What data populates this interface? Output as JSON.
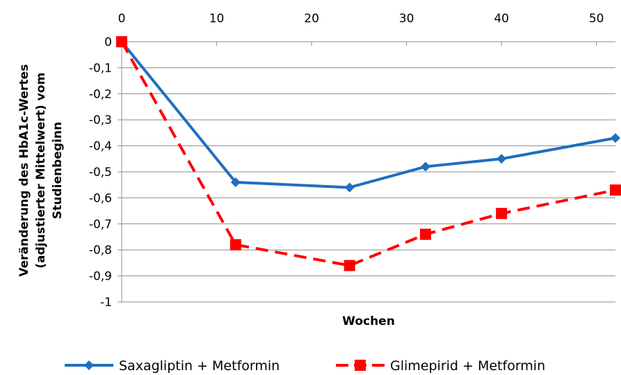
{
  "chart_data": {
    "type": "line",
    "xlabel": "Wochen",
    "ylabel_lines": [
      "Veränderung des HbA1c-Wertes",
      "(adjustierter Mittelwert) vom",
      "Studienbeginn"
    ],
    "x_ticks": [
      "0",
      "10",
      "20",
      "30",
      "40",
      "50"
    ],
    "y_ticks": [
      "0",
      "-0,1",
      "-0,2",
      "-0,3",
      "-0,4",
      "-0,5",
      "-0,6",
      "-0,7",
      "-0,8",
      "-0,9",
      "-1"
    ],
    "xlim": [
      0,
      52
    ],
    "ylim": [
      -1,
      0
    ],
    "x_axis_position": "top",
    "grid": "horizontal",
    "legend_position": "bottom",
    "series": [
      {
        "name": "Saxagliptin + Metformin",
        "color": "#1f6fbf",
        "style": "solid",
        "marker": "diamond",
        "x": [
          0,
          12,
          24,
          32,
          40,
          52
        ],
        "y": [
          0,
          -0.54,
          -0.56,
          -0.48,
          -0.45,
          -0.37
        ]
      },
      {
        "name": "Glimepirid + Metformin",
        "color": "#ff0000",
        "style": "dashed",
        "marker": "square",
        "x": [
          0,
          12,
          24,
          32,
          40,
          52
        ],
        "y": [
          0,
          -0.78,
          -0.86,
          -0.74,
          -0.66,
          -0.57
        ]
      }
    ]
  }
}
